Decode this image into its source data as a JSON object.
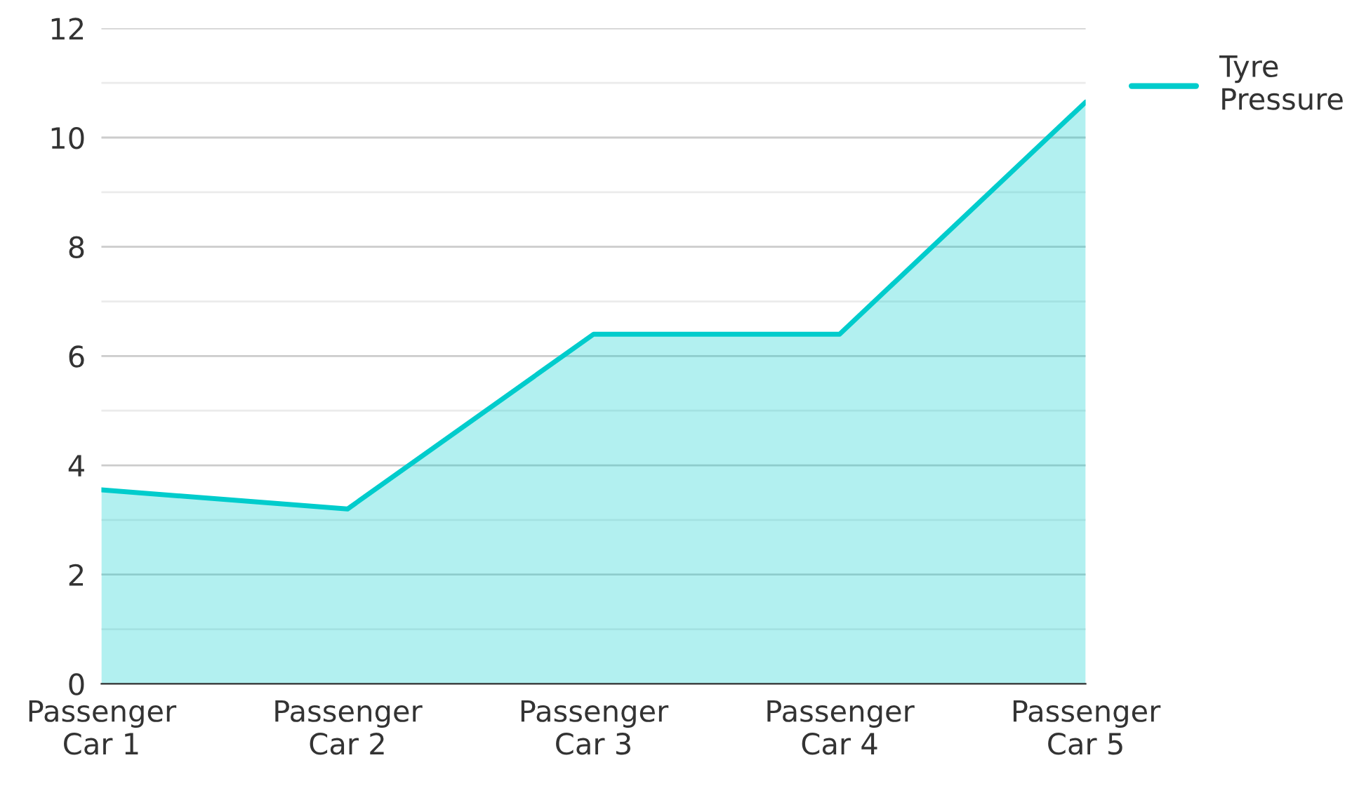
{
  "chart_data": {
    "type": "area",
    "categories": [
      "Passenger\nCar 1",
      "Passenger\nCar 2",
      "Passenger\nCar 3",
      "Passenger\nCar 4",
      "Passenger\nCar 5"
    ],
    "series": [
      {
        "name": "Tyre\nPressure",
        "color": "#00cccc",
        "values": [
          3.55,
          3.2,
          6.4,
          6.4,
          10.65
        ]
      }
    ],
    "ylim": [
      0,
      12
    ],
    "yticks": [
      0,
      {
        "value": 1,
        "label": null
      },
      2,
      {
        "value": 3,
        "label": null
      },
      4,
      {
        "value": 5,
        "label": null
      },
      6,
      {
        "value": 7,
        "label": null
      },
      8,
      {
        "value": 9,
        "label": null
      },
      10,
      {
        "value": 11,
        "label": null
      },
      12
    ],
    "grid": "y",
    "legend": "top right"
  }
}
